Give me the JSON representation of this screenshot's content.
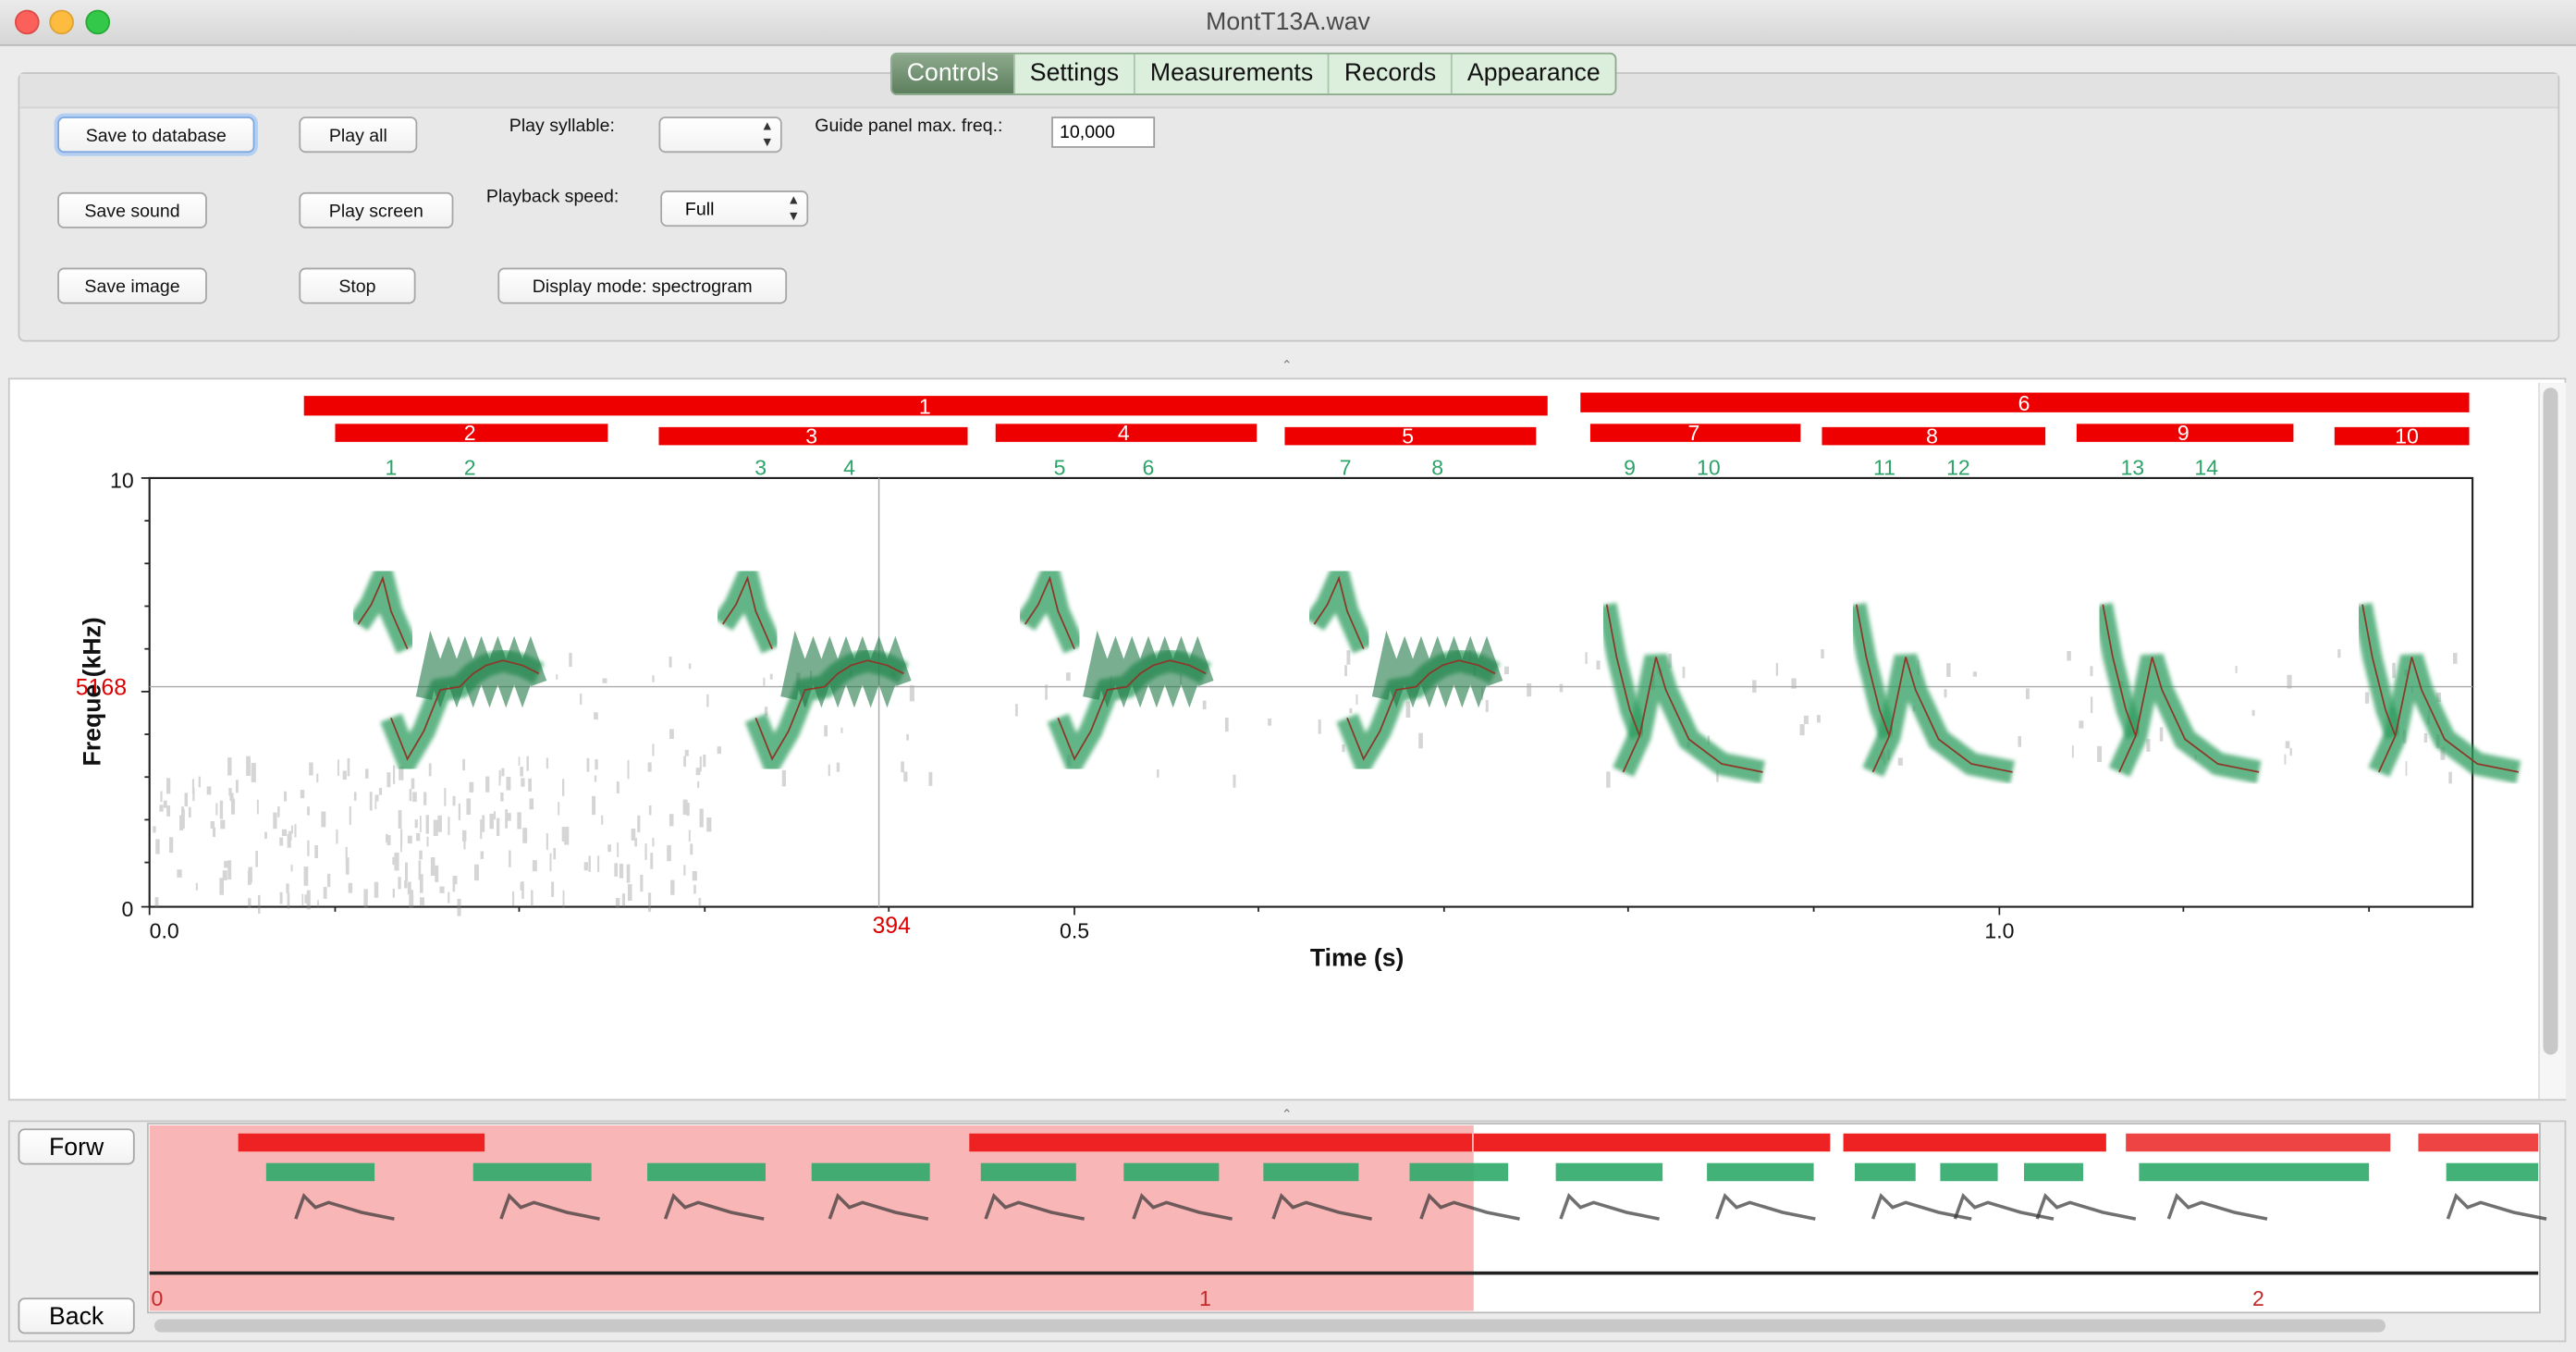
{
  "window": {
    "title": "MontT13A.wav"
  },
  "tabs": [
    {
      "label": "Controls",
      "active": true
    },
    {
      "label": "Settings",
      "active": false
    },
    {
      "label": "Measurements",
      "active": false
    },
    {
      "label": "Records",
      "active": false
    },
    {
      "label": "Appearance",
      "active": false
    }
  ],
  "controls": {
    "save_db": "Save to database",
    "save_sound": "Save sound",
    "save_image": "Save image",
    "play_all": "Play all",
    "play_screen": "Play screen",
    "stop": "Stop",
    "play_syllable_label": "Play syllable:",
    "play_syllable_value": "",
    "playback_speed_label": "Playback speed:",
    "playback_speed_value": "Full",
    "display_mode": "Display mode: spectrogram",
    "guide_label": "Guide panel max. freq.:",
    "guide_value": "10,000"
  },
  "spectrogram": {
    "ylabel": "Freque    (kHz)",
    "xlabel": "Time (s)",
    "yticks": [
      "10",
      "0"
    ],
    "xticks": [
      "0.0",
      "0.5",
      "1.0"
    ],
    "cursor_freq": "5168",
    "cursor_time": "394",
    "phrase_labels": [
      "1",
      "6"
    ],
    "song_labels": [
      "2",
      "3",
      "4",
      "5",
      "7",
      "8",
      "9",
      "10"
    ],
    "syllable_labels": [
      "1",
      "2",
      "3",
      "4",
      "5",
      "6",
      "7",
      "8",
      "9",
      "10",
      "11",
      "12",
      "13",
      "14"
    ],
    "colors": {
      "phrase": "#ee0000",
      "syllable_label": "#2ea36a",
      "trace": "#2e9d5e",
      "cursor_label": "#dd0000"
    }
  },
  "overview": {
    "forward": "Forw",
    "back": "Back",
    "ticks": [
      "0",
      "1",
      "2"
    ],
    "selected_range": [
      0,
      1.26
    ],
    "colors": {
      "selection": "#f8b6b6",
      "bars_red": "#ee2222",
      "bars_green": "#2eaa6a"
    }
  }
}
